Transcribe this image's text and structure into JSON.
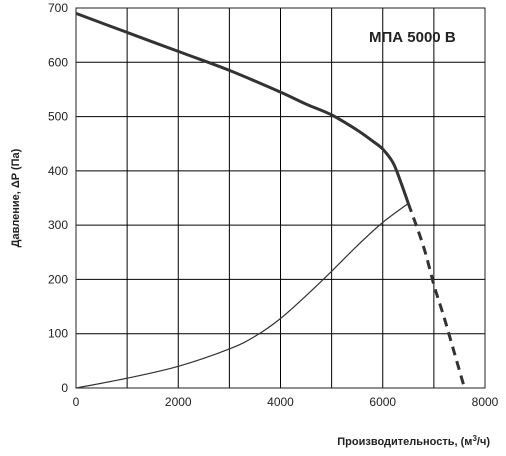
{
  "chart_data": {
    "type": "line",
    "title": "",
    "annotation": "МПА 5000 В",
    "xlabel_text": "Производительность, (м",
    "xlabel_sup": "3",
    "xlabel_tail": "/ч)",
    "ylabel": "Давление, ΔP (Па)",
    "xlim": [
      0,
      8000
    ],
    "ylim": [
      0,
      700
    ],
    "x_ticks": [
      0,
      2000,
      4000,
      6000,
      8000
    ],
    "y_ticks": [
      0,
      100,
      200,
      300,
      400,
      500,
      600,
      700
    ],
    "x_grid": [
      0,
      1000,
      2000,
      3000,
      4000,
      5000,
      6000,
      7000,
      8000
    ],
    "y_grid": [
      0,
      100,
      200,
      300,
      400,
      500,
      600,
      700
    ],
    "grid": true,
    "series": [
      {
        "role": "fan-curve",
        "style": "thick-solid",
        "x": [
          0,
          1000,
          2000,
          3000,
          4000,
          4500,
          5000,
          5500,
          5800,
          6000,
          6200,
          6350,
          6500
        ],
        "y": [
          690,
          655,
          620,
          585,
          545,
          523,
          503,
          475,
          455,
          440,
          415,
          380,
          340
        ]
      },
      {
        "role": "fan-curve-extension",
        "style": "thick-dashed",
        "x": [
          6500,
          6800,
          7000,
          7200,
          7400,
          7600
        ],
        "y": [
          340,
          260,
          190,
          130,
          65,
          0
        ]
      },
      {
        "role": "system-curve",
        "style": "thin-solid",
        "x": [
          0,
          1000,
          2000,
          3000,
          3500,
          4000,
          4500,
          5000,
          5500,
          6000,
          6500
        ],
        "y": [
          0,
          18,
          40,
          72,
          95,
          128,
          170,
          215,
          262,
          305,
          340
        ]
      }
    ],
    "colors": {
      "curve": "#333333",
      "grid": "#000000",
      "axis": "#222222"
    }
  }
}
